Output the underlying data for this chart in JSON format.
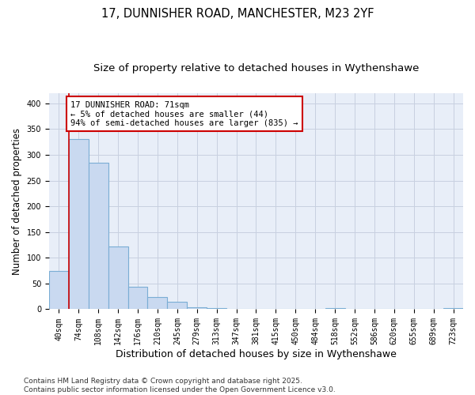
{
  "title1": "17, DUNNISHER ROAD, MANCHESTER, M23 2YF",
  "title2": "Size of property relative to detached houses in Wythenshawe",
  "xlabel": "Distribution of detached houses by size in Wythenshawe",
  "ylabel": "Number of detached properties",
  "categories": [
    "40sqm",
    "74sqm",
    "108sqm",
    "142sqm",
    "176sqm",
    "210sqm",
    "245sqm",
    "279sqm",
    "313sqm",
    "347sqm",
    "381sqm",
    "415sqm",
    "450sqm",
    "484sqm",
    "518sqm",
    "552sqm",
    "586sqm",
    "620sqm",
    "655sqm",
    "689sqm",
    "723sqm"
  ],
  "values": [
    75,
    330,
    284,
    122,
    43,
    24,
    14,
    4,
    2,
    1,
    0,
    0,
    0,
    0,
    3,
    0,
    0,
    0,
    0,
    0,
    2
  ],
  "bar_color": "#c9d9f0",
  "bar_edge_color": "#7aadd4",
  "red_line_index": 1,
  "annotation_text": "17 DUNNISHER ROAD: 71sqm\n← 5% of detached houses are smaller (44)\n94% of semi-detached houses are larger (835) →",
  "annotation_box_color": "white",
  "annotation_edge_color": "#cc0000",
  "red_line_color": "#cc0000",
  "ylim": [
    0,
    420
  ],
  "yticks": [
    0,
    50,
    100,
    150,
    200,
    250,
    300,
    350,
    400
  ],
  "footer1": "Contains HM Land Registry data © Crown copyright and database right 2025.",
  "footer2": "Contains public sector information licensed under the Open Government Licence v3.0.",
  "fig_bg_color": "#ffffff",
  "plot_bg_color": "#e8eef8",
  "grid_color": "#c8d0e0",
  "title1_fontsize": 10.5,
  "title2_fontsize": 9.5,
  "tick_fontsize": 7,
  "ylabel_fontsize": 8.5,
  "xlabel_fontsize": 9,
  "annotation_fontsize": 7.5,
  "footer_fontsize": 6.5
}
